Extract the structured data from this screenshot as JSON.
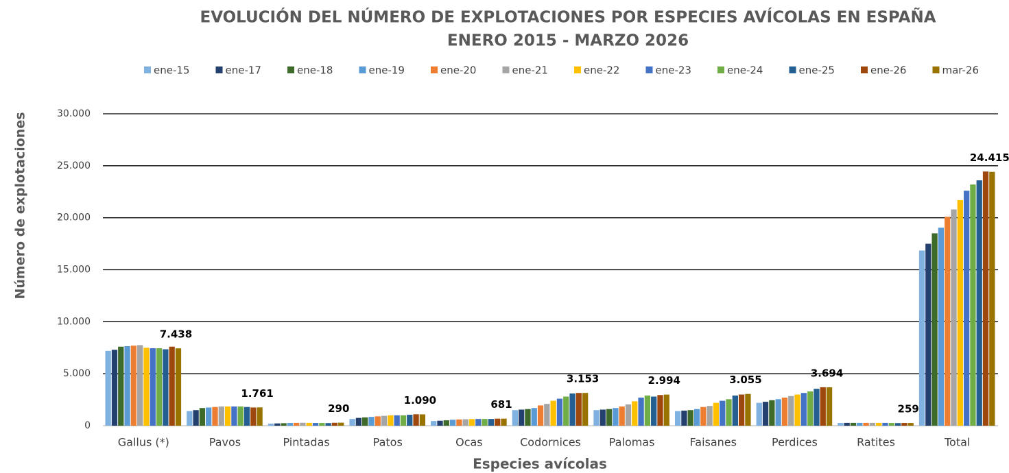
{
  "chart_data": {
    "type": "bar",
    "title": "EVOLUCIÓN DEL NÚMERO DE EXPLOTACIONES POR ESPECIES AVÍCOLAS EN ESPAÑA",
    "subtitle": "ENERO 2015 - MARZO 2026",
    "x_label": "Especies avícolas",
    "y_label": "Número de explotaciones",
    "categories": [
      "Gallus (*)",
      "Pavos",
      "Pintadas",
      "Patos",
      "Ocas",
      "Codornices",
      "Palomas",
      "Faisanes",
      "Perdices",
      "Ratites",
      "Total"
    ],
    "series": [
      {
        "name": "ene-15",
        "color": "#7fb2e0",
        "values": [
          7200,
          1400,
          200,
          650,
          450,
          1500,
          1500,
          1400,
          2200,
          260,
          16850
        ]
      },
      {
        "name": "ene-17",
        "color": "#24406e",
        "values": [
          7300,
          1500,
          220,
          750,
          480,
          1550,
          1550,
          1450,
          2300,
          270,
          17500
        ]
      },
      {
        "name": "ene-18",
        "color": "#3e6b2a",
        "values": [
          7600,
          1700,
          240,
          800,
          520,
          1600,
          1600,
          1500,
          2450,
          270,
          18500
        ]
      },
      {
        "name": "ene-19",
        "color": "#5b9bd5",
        "values": [
          7650,
          1750,
          260,
          850,
          570,
          1700,
          1700,
          1600,
          2550,
          270,
          19050
        ]
      },
      {
        "name": "ene-20",
        "color": "#ed7d31",
        "values": [
          7700,
          1800,
          270,
          900,
          600,
          1950,
          1850,
          1800,
          2700,
          270,
          20100
        ]
      },
      {
        "name": "ene-21",
        "color": "#a5a5a5",
        "values": [
          7750,
          1850,
          280,
          950,
          620,
          2100,
          2050,
          1900,
          2850,
          270,
          20800
        ]
      },
      {
        "name": "ene-22",
        "color": "#ffc000",
        "values": [
          7500,
          1850,
          270,
          1000,
          640,
          2400,
          2350,
          2200,
          3000,
          270,
          21700
        ]
      },
      {
        "name": "ene-23",
        "color": "#4472c4",
        "values": [
          7450,
          1850,
          260,
          1000,
          650,
          2600,
          2700,
          2400,
          3150,
          270,
          22600
        ]
      },
      {
        "name": "ene-24",
        "color": "#70ad47",
        "values": [
          7450,
          1850,
          260,
          1000,
          650,
          2800,
          2900,
          2550,
          3300,
          260,
          23200
        ]
      },
      {
        "name": "ene-25",
        "color": "#255e91",
        "values": [
          7350,
          1800,
          250,
          1050,
          650,
          3100,
          2800,
          2900,
          3550,
          250,
          23600
        ]
      },
      {
        "name": "ene-26",
        "color": "#9e480e",
        "values": [
          7600,
          1750,
          280,
          1100,
          680,
          3150,
          2950,
          3000,
          3700,
          260,
          24450
        ]
      },
      {
        "name": "mar-26",
        "color": "#997300",
        "values": [
          7438,
          1761,
          290,
          1090,
          681,
          3153,
          2994,
          3055,
          3694,
          259,
          24415
        ],
        "value_labels": [
          "7.438",
          "1.761",
          "290",
          "1.090",
          "681",
          "3.153",
          "2.994",
          "3.055",
          "3.694",
          "259",
          "24.415"
        ]
      }
    ],
    "ylim": [
      0,
      30000
    ],
    "yticks": [
      0,
      {
        "value": 5000,
        "label": "5.000"
      },
      {
        "value": 10000,
        "label": "10.000"
      },
      {
        "value": 15000,
        "label": "15.000"
      },
      {
        "value": 20000,
        "label": "20.000"
      },
      {
        "value": 25000,
        "label": "25.000"
      },
      {
        "value": 30000,
        "label": "30.000"
      }
    ],
    "grid": true,
    "legend": "top"
  }
}
